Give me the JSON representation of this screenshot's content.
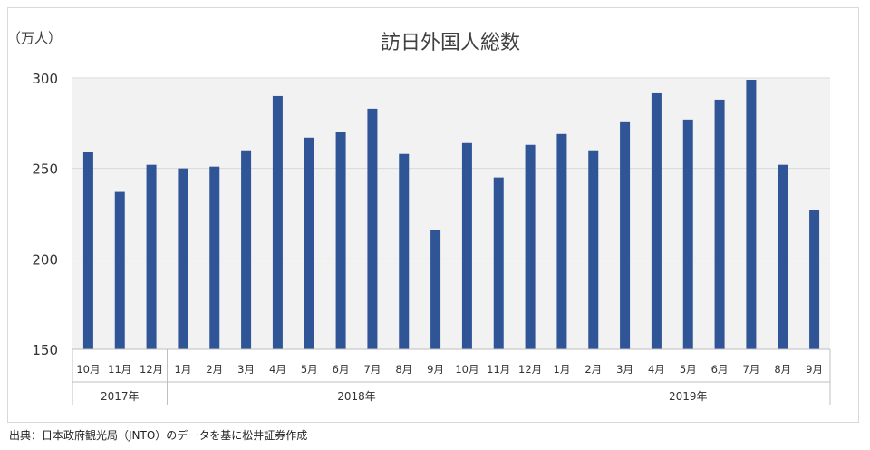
{
  "chart_data": {
    "type": "bar",
    "title": "訪日外国人総数",
    "ylabel": "（万人）",
    "ylim": [
      150,
      300
    ],
    "yticks": [
      "150",
      "200",
      "250",
      "300"
    ],
    "ytick_values": [
      150,
      200,
      250,
      300
    ],
    "grid": true,
    "categories": [
      "10月",
      "11月",
      "12月",
      "1月",
      "2月",
      "3月",
      "4月",
      "5月",
      "6月",
      "7月",
      "8月",
      "9月",
      "10月",
      "11月",
      "12月",
      "1月",
      "2月",
      "3月",
      "4月",
      "5月",
      "6月",
      "7月",
      "8月",
      "9月"
    ],
    "values": [
      259,
      237,
      252,
      250,
      251,
      260,
      290,
      267,
      270,
      283,
      258,
      216,
      264,
      245,
      263,
      269,
      260,
      276,
      292,
      277,
      288,
      299,
      252,
      227
    ],
    "year_groups": [
      {
        "label": "2017年",
        "count": 3
      },
      {
        "label": "2018年",
        "count": 12
      },
      {
        "label": "2019年",
        "count": 9
      }
    ],
    "colors": {
      "bar": "#2f5597",
      "plot_bg": "#f2f2f2",
      "grid": "#d9d9d9"
    }
  },
  "source_note": "出典：日本政府観光局（JNTO）のデータを基に松井証券作成"
}
